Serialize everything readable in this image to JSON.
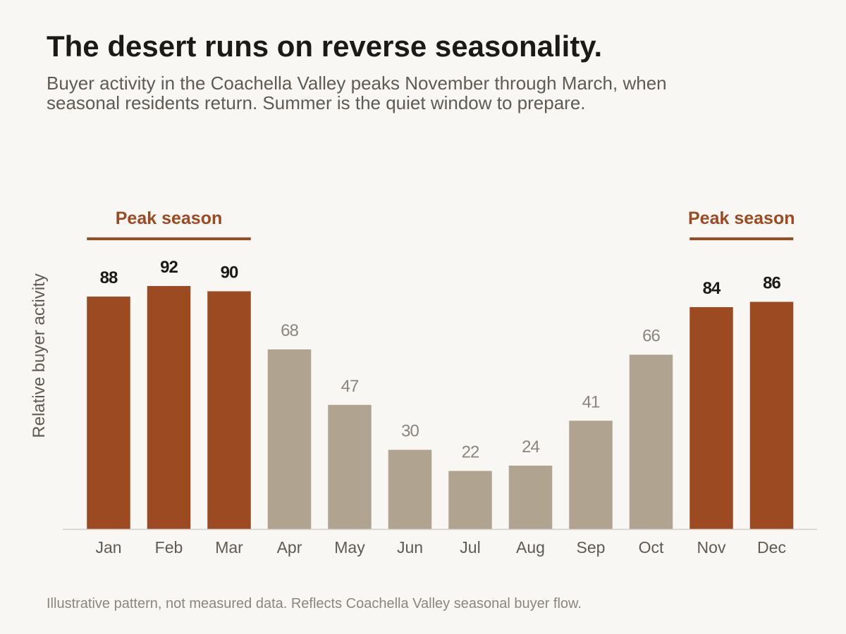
{
  "page": {
    "title": "The desert runs on reverse seasonality.",
    "subtitle": "Buyer activity in the Coachella Valley peaks November through March, when seasonal residents return. Summer is the quiet window to prepare.",
    "footnote": "Illustrative pattern, not measured data. Reflects Coachella Valley seasonal buyer flow."
  },
  "chart_data": {
    "type": "bar",
    "title": "The desert runs on reverse seasonality.",
    "xlabel": "",
    "ylabel": "Relative buyer activity",
    "ylim": [
      0,
      100
    ],
    "grid": false,
    "categories": [
      "Jan",
      "Feb",
      "Mar",
      "Apr",
      "May",
      "Jun",
      "Jul",
      "Aug",
      "Sep",
      "Oct",
      "Nov",
      "Dec"
    ],
    "values": [
      88,
      92,
      90,
      68,
      47,
      30,
      22,
      24,
      41,
      66,
      84,
      86
    ],
    "highlighted": [
      true,
      true,
      true,
      false,
      false,
      false,
      false,
      false,
      false,
      false,
      true,
      true
    ],
    "annotations": [
      {
        "label": "Peak season",
        "start": "Jan",
        "end": "Mar"
      },
      {
        "label": "Peak season",
        "start": "Nov",
        "end": "Dec"
      }
    ],
    "colors": {
      "peak": "#9c4a21",
      "offpeak": "#b0a490",
      "peak_label": "#1c1a17",
      "offpeak_label": "#8b857c",
      "axis_line": "#d4d0c9",
      "tick_label": "#5f5a53"
    }
  }
}
